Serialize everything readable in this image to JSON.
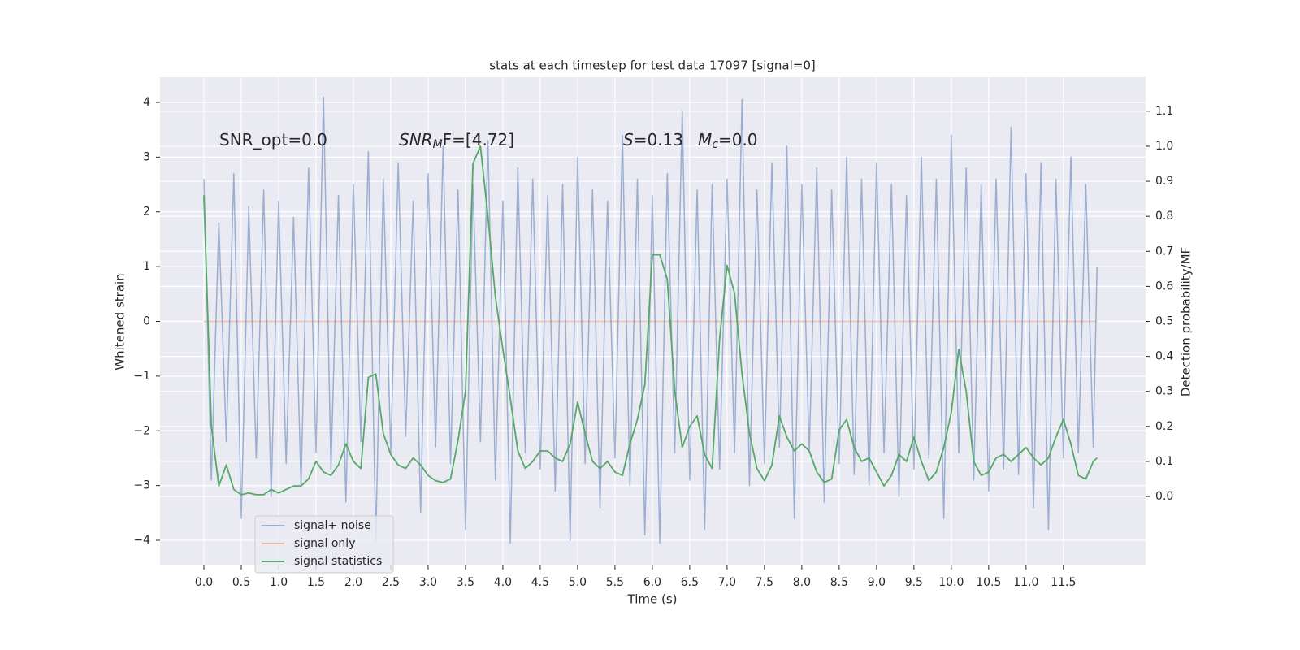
{
  "chart_data": {
    "type": "line",
    "title": "stats at each timestep for test data 17097 [signal=0]",
    "xlabel": "Time (s)",
    "ylabel": "Whitened strain",
    "y2label": "Detection probability/MF",
    "annotations": [
      {
        "text": "SNR_opt=0.0"
      },
      {
        "main": "SNR",
        "sub": "M",
        "rest": "F=[4.72]"
      },
      {
        "main": "S",
        "rest": "=0.13"
      },
      {
        "main": "M",
        "sub": "c",
        "rest": "=0.0"
      }
    ],
    "x": [
      0,
      0.1,
      0.2,
      0.3,
      0.4,
      0.5,
      0.6,
      0.7,
      0.8,
      0.9,
      1,
      1.1,
      1.2,
      1.3,
      1.4,
      1.5,
      1.6,
      1.7,
      1.8,
      1.9,
      2,
      2.1,
      2.2,
      2.3,
      2.4,
      2.5,
      2.6,
      2.7,
      2.8,
      2.9,
      3,
      3.1,
      3.2,
      3.3,
      3.4,
      3.5,
      3.6,
      3.7,
      3.8,
      3.9,
      4,
      4.1,
      4.2,
      4.3,
      4.4,
      4.5,
      4.6,
      4.7,
      4.8,
      4.9,
      5,
      5.1,
      5.2,
      5.3,
      5.4,
      5.5,
      5.6,
      5.7,
      5.8,
      5.9,
      6,
      6.1,
      6.2,
      6.3,
      6.4,
      6.5,
      6.6,
      6.7,
      6.8,
      6.9,
      7,
      7.1,
      7.2,
      7.3,
      7.4,
      7.5,
      7.6,
      7.7,
      7.8,
      7.9,
      8,
      8.1,
      8.2,
      8.3,
      8.4,
      8.5,
      8.6,
      8.7,
      8.8,
      8.9,
      9,
      9.1,
      9.2,
      9.3,
      9.4,
      9.5,
      9.6,
      9.7,
      9.8,
      9.9,
      10,
      10.1,
      10.2,
      10.3,
      10.4,
      10.5,
      10.6,
      10.7,
      10.8,
      10.9,
      11,
      11.1,
      11.2,
      11.3,
      11.4,
      11.5,
      11.6,
      11.7,
      11.8,
      11.9,
      11.95
    ],
    "series": [
      {
        "name": "signal+ noise",
        "color": "#4c72b0",
        "opacity": 0.5,
        "values": [
          2.6,
          -2.9,
          1.8,
          -2.2,
          2.7,
          -3.6,
          2.1,
          -2.5,
          2.4,
          -3.2,
          2.2,
          -2.6,
          1.9,
          -3.0,
          2.8,
          -2.4,
          4.1,
          -2.7,
          2.3,
          -3.3,
          2.5,
          -2.2,
          3.1,
          -4.0,
          2.6,
          -2.4,
          2.9,
          -2.1,
          2.2,
          -3.5,
          2.7,
          -2.3,
          3.2,
          -2.6,
          2.4,
          -3.8,
          2.5,
          -2.2,
          3.3,
          -2.9,
          2.2,
          -4.05,
          2.8,
          -2.4,
          2.6,
          -2.7,
          2.3,
          -3.1,
          2.5,
          -4.0,
          3.0,
          -2.6,
          2.4,
          -3.4,
          2.2,
          -2.5,
          3.4,
          -3.0,
          2.6,
          -3.9,
          2.3,
          -4.05,
          2.7,
          -2.4,
          3.85,
          -2.9,
          2.4,
          -3.8,
          2.5,
          -2.7,
          2.6,
          -2.4,
          4.05,
          -3.0,
          2.4,
          -2.6,
          2.9,
          -2.3,
          3.2,
          -3.6,
          2.5,
          -2.4,
          2.8,
          -3.3,
          2.4,
          -2.6,
          3.0,
          -2.8,
          2.6,
          -3.0,
          2.9,
          -2.4,
          2.5,
          -3.2,
          2.3,
          -2.7,
          3.0,
          -2.5,
          2.6,
          -3.6,
          3.4,
          -2.4,
          2.8,
          -2.9,
          2.5,
          -3.1,
          2.6,
          -2.7,
          3.55,
          -2.8,
          2.7,
          -3.4,
          2.9,
          -3.8,
          2.6,
          -2.5,
          3.0,
          -2.4,
          2.5,
          -2.3,
          1.0
        ]
      },
      {
        "name": "signal only",
        "color": "#dd8452",
        "opacity": 0.5,
        "values": [
          0,
          0,
          0,
          0,
          0,
          0,
          0,
          0,
          0,
          0,
          0,
          0,
          0,
          0,
          0,
          0,
          0,
          0,
          0,
          0,
          0,
          0,
          0,
          0,
          0,
          0,
          0,
          0,
          0,
          0,
          0,
          0,
          0,
          0,
          0,
          0,
          0,
          0,
          0,
          0,
          0,
          0,
          0,
          0,
          0,
          0,
          0,
          0,
          0,
          0,
          0,
          0,
          0,
          0,
          0,
          0,
          0,
          0,
          0,
          0,
          0,
          0,
          0,
          0,
          0,
          0,
          0,
          0,
          0,
          0,
          0,
          0,
          0,
          0,
          0,
          0,
          0,
          0,
          0,
          0,
          0,
          0,
          0,
          0,
          0,
          0,
          0,
          0,
          0,
          0,
          0,
          0,
          0,
          0,
          0,
          0,
          0,
          0,
          0,
          0,
          0,
          0,
          0,
          0,
          0,
          0,
          0,
          0,
          0,
          0,
          0,
          0,
          0,
          0,
          0,
          0,
          0,
          0,
          0,
          0,
          0
        ]
      },
      {
        "name": "signal statistics",
        "color": "#55a868",
        "opacity": 1,
        "axis": "y2",
        "values": [
          0.86,
          0.2,
          0.03,
          0.09,
          0.02,
          0.005,
          0.01,
          0.005,
          0.005,
          0.02,
          0.01,
          0.02,
          0.03,
          0.03,
          0.05,
          0.1,
          0.07,
          0.06,
          0.09,
          0.15,
          0.1,
          0.08,
          0.34,
          0.35,
          0.18,
          0.12,
          0.09,
          0.08,
          0.11,
          0.09,
          0.06,
          0.045,
          0.04,
          0.05,
          0.16,
          0.3,
          0.95,
          1.0,
          0.8,
          0.57,
          0.42,
          0.28,
          0.13,
          0.08,
          0.1,
          0.13,
          0.13,
          0.11,
          0.1,
          0.15,
          0.27,
          0.18,
          0.1,
          0.08,
          0.1,
          0.07,
          0.06,
          0.15,
          0.22,
          0.32,
          0.69,
          0.69,
          0.62,
          0.3,
          0.14,
          0.2,
          0.23,
          0.12,
          0.08,
          0.45,
          0.66,
          0.58,
          0.35,
          0.18,
          0.08,
          0.045,
          0.09,
          0.23,
          0.17,
          0.13,
          0.15,
          0.13,
          0.07,
          0.04,
          0.05,
          0.19,
          0.22,
          0.14,
          0.1,
          0.11,
          0.07,
          0.03,
          0.06,
          0.12,
          0.1,
          0.17,
          0.1,
          0.045,
          0.07,
          0.14,
          0.24,
          0.42,
          0.3,
          0.1,
          0.06,
          0.07,
          0.11,
          0.12,
          0.1,
          0.12,
          0.14,
          0.11,
          0.09,
          0.11,
          0.17,
          0.22,
          0.15,
          0.06,
          0.05,
          0.1,
          0.11
        ]
      }
    ],
    "xlim": [
      -0.587,
      12.6
    ],
    "xticks": [
      {
        "value": 0,
        "label": "0.0"
      },
      0.5,
      {
        "value": 1,
        "label": "1.0"
      },
      1.5,
      {
        "value": 2,
        "label": "2.0"
      },
      2.5,
      {
        "value": 3,
        "label": "3.0"
      },
      3.5,
      {
        "value": 4,
        "label": "4.0"
      },
      4.5,
      {
        "value": 5,
        "label": "5.0"
      },
      5.5,
      {
        "value": 6,
        "label": "6.0"
      },
      6.5,
      {
        "value": 7,
        "label": "7.0"
      },
      7.5,
      {
        "value": 8,
        "label": "8.0"
      },
      8.5,
      {
        "value": 9,
        "label": "9.0"
      },
      9.5,
      {
        "value": 10,
        "label": "10.0"
      },
      10.5,
      {
        "value": 11,
        "label": "11.0"
      },
      11.5
    ],
    "ylim": [
      -4.46,
      4.46
    ],
    "yticks": [
      {
        "value": -4,
        "label": "−4"
      },
      {
        "value": -3,
        "label": "−3"
      },
      {
        "value": -2,
        "label": "−2"
      },
      {
        "value": -1,
        "label": "−1"
      },
      0,
      1,
      2,
      3,
      4
    ],
    "y2lim": [
      -0.197,
      1.197
    ],
    "y2ticks": [
      {
        "value": 0,
        "label": "0.0"
      },
      0.1,
      0.2,
      0.3,
      0.4,
      0.5,
      0.6,
      0.7,
      0.8,
      0.9,
      {
        "value": 1,
        "label": "1.0"
      },
      1.1
    ],
    "grid": true,
    "legend": "lower left"
  }
}
